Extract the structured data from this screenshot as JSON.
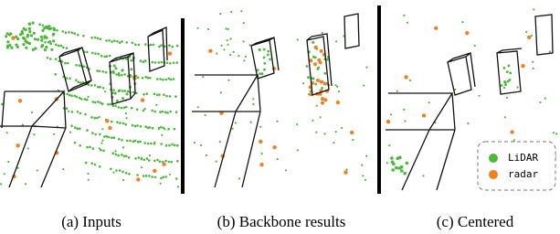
{
  "panels": [
    {
      "caption": "(a) Inputs"
    },
    {
      "caption": "(b) Backbone results"
    },
    {
      "caption": "(c) Centered"
    }
  ],
  "legend": [
    {
      "label": "LiDAR",
      "color": "#4cb83a"
    },
    {
      "label": "radar",
      "color": "#f08120"
    }
  ]
}
